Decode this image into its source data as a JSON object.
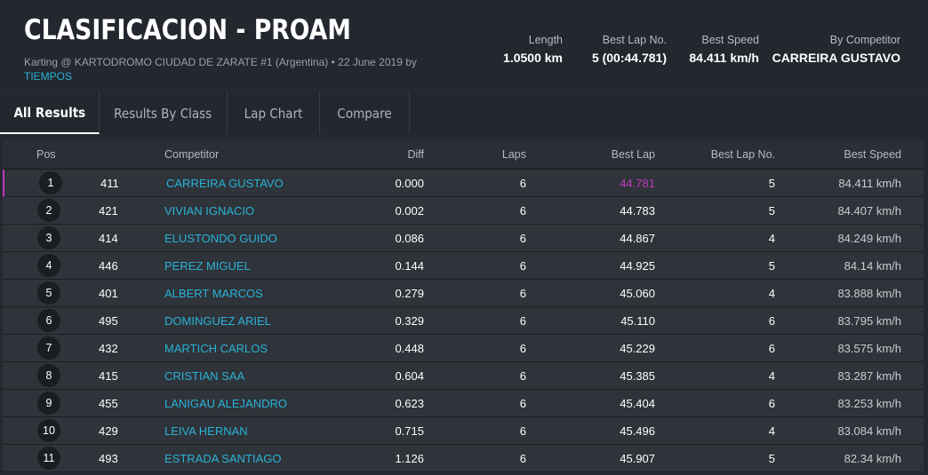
{
  "header": {
    "title": "CLASIFICACION - PROAM",
    "subtitle": "Karting @ KARTODROMO CIUDAD DE ZARATE #1 (Argentina) • 22 June 2019 by",
    "subtitle_link": "TIEMPOS",
    "stats": {
      "length_label": "Length",
      "length_value": "1.0500 km",
      "bestlapno_label": "Best Lap No.",
      "bestlapno_value": "5 (00:44.781)",
      "bestspeed_label": "Best Speed",
      "bestspeed_value": "84.411 km/h",
      "bycomp_label": "By Competitor",
      "bycomp_value": "CARREIRA GUSTAVO"
    }
  },
  "tabs": [
    "All Results",
    "Results By Class",
    "Lap Chart",
    "Compare"
  ],
  "table": {
    "headers": {
      "pos": "Pos",
      "competitor": "Competitor",
      "diff": "Diff",
      "laps": "Laps",
      "best_lap": "Best Lap",
      "best_lap_no": "Best Lap No.",
      "best_speed": "Best Speed"
    },
    "rows": [
      {
        "pos": "1",
        "num": "411",
        "competitor": "CARREIRA GUSTAVO",
        "diff": "0.000",
        "laps": "6",
        "best_lap": "44.781",
        "best_lap_no": "5",
        "best_speed": "84.411 km/h"
      },
      {
        "pos": "2",
        "num": "421",
        "competitor": "VIVIAN IGNACIO",
        "diff": "0.002",
        "laps": "6",
        "best_lap": "44.783",
        "best_lap_no": "5",
        "best_speed": "84.407 km/h"
      },
      {
        "pos": "3",
        "num": "414",
        "competitor": "ELUSTONDO GUIDO",
        "diff": "0.086",
        "laps": "6",
        "best_lap": "44.867",
        "best_lap_no": "4",
        "best_speed": "84.249 km/h"
      },
      {
        "pos": "4",
        "num": "446",
        "competitor": "PEREZ MIGUEL",
        "diff": "0.144",
        "laps": "6",
        "best_lap": "44.925",
        "best_lap_no": "5",
        "best_speed": "84.14 km/h"
      },
      {
        "pos": "5",
        "num": "401",
        "competitor": "ALBERT MARCOS",
        "diff": "0.279",
        "laps": "6",
        "best_lap": "45.060",
        "best_lap_no": "4",
        "best_speed": "83.888 km/h"
      },
      {
        "pos": "6",
        "num": "495",
        "competitor": "DOMINGUEZ ARIEL",
        "diff": "0.329",
        "laps": "6",
        "best_lap": "45.110",
        "best_lap_no": "6",
        "best_speed": "83.795 km/h"
      },
      {
        "pos": "7",
        "num": "432",
        "competitor": "MARTICH CARLOS",
        "diff": "0.448",
        "laps": "6",
        "best_lap": "45.229",
        "best_lap_no": "6",
        "best_speed": "83.575 km/h"
      },
      {
        "pos": "8",
        "num": "415",
        "competitor": "CRISTIAN SAA",
        "diff": "0.604",
        "laps": "6",
        "best_lap": "45.385",
        "best_lap_no": "4",
        "best_speed": "83.287 km/h"
      },
      {
        "pos": "9",
        "num": "455",
        "competitor": "LANIGAU ALEJANDRO",
        "diff": "0.623",
        "laps": "6",
        "best_lap": "45.404",
        "best_lap_no": "6",
        "best_speed": "83.253 km/h"
      },
      {
        "pos": "10",
        "num": "429",
        "competitor": "LEIVA HERNAN",
        "diff": "0.715",
        "laps": "6",
        "best_lap": "45.496",
        "best_lap_no": "4",
        "best_speed": "83.084 km/h"
      },
      {
        "pos": "11",
        "num": "493",
        "competitor": "ESTRADA SANTIAGO",
        "diff": "1.126",
        "laps": "6",
        "best_lap": "45.907",
        "best_lap_no": "5",
        "best_speed": "82.34 km/h"
      }
    ]
  },
  "colors": {
    "accent_link": "#2ab3d6",
    "fastest_lap": "#c13bbf"
  }
}
